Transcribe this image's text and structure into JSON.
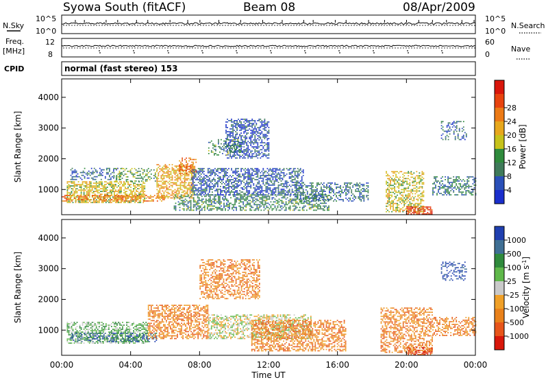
{
  "header": {
    "station": "Syowa South (fitACF)",
    "beam": "Beam 08",
    "date": "08/Apr/2009"
  },
  "summary": {
    "nsky_label": "N.Sky",
    "nsky_ticks": [
      "10^5",
      "10^0"
    ],
    "nsearch_label": "N.Search",
    "nsearch_ticks": [
      "10^5",
      "10^0"
    ],
    "freq_label_1": "Freq.",
    "freq_label_2": "[MHz]",
    "freq_ticks": [
      "12",
      "8"
    ],
    "nave_label": "Nave",
    "nave_ticks": [
      "60",
      "0"
    ],
    "cpid_label": "CPID",
    "cpid_value": "normal (fast stereo) 153"
  },
  "colors": {
    "power": [
      "#1a2ecc",
      "#2a50b8",
      "#3f7a5a",
      "#2f8b3c",
      "#c6c21a",
      "#e7a71c",
      "#ec7a15",
      "#e8430e",
      "#d9160b"
    ],
    "velocity": [
      "#1f3fb0",
      "#3f6f94",
      "#2f8a3c",
      "#5fb84a",
      "#c9c9c9",
      "#f0a028",
      "#e9811a",
      "#e7551a",
      "#d8170a"
    ]
  },
  "chart_data": [
    {
      "type": "heatmap",
      "title": "Power",
      "xlabel": "",
      "ylabel": "Slant Range [km]",
      "x_range_hours": [
        0,
        24
      ],
      "ylim": [
        180,
        4600
      ],
      "yticks": [
        "1000",
        "2000",
        "3000",
        "4000"
      ],
      "xticks": [
        "00:00",
        "04:00",
        "08:00",
        "12:00",
        "16:00",
        "20:00",
        "00:00"
      ],
      "colorbar": {
        "label": "Power [dB]",
        "min": 0,
        "max": 32,
        "ticks": [
          "4",
          "8",
          "12",
          "16",
          "20",
          "24",
          "28"
        ]
      },
      "regions": [
        {
          "t": [
            0.3,
            4.8
          ],
          "r": [
            550,
            1250
          ],
          "v": 17,
          "density": 0.6
        },
        {
          "t": [
            0.5,
            3.5
          ],
          "r": [
            1300,
            1700
          ],
          "v": 7,
          "density": 0.35
        },
        {
          "t": [
            3.0,
            5.5
          ],
          "r": [
            1250,
            1700
          ],
          "v": 12,
          "density": 0.35
        },
        {
          "t": [
            0.0,
            6.0
          ],
          "r": [
            600,
            800
          ],
          "v": 23,
          "density": 0.55
        },
        {
          "t": [
            5.5,
            7.6
          ],
          "r": [
            700,
            1800
          ],
          "v": 20,
          "density": 0.6
        },
        {
          "t": [
            6.8,
            7.8
          ],
          "r": [
            1500,
            2000
          ],
          "v": 24,
          "density": 0.55
        },
        {
          "t": [
            6.5,
            15.5
          ],
          "r": [
            300,
            800
          ],
          "v": 10,
          "density": 0.5
        },
        {
          "t": [
            7.5,
            14.0
          ],
          "r": [
            800,
            1700
          ],
          "v": 6,
          "density": 0.55
        },
        {
          "t": [
            9.5,
            12.0
          ],
          "r": [
            2000,
            3300
          ],
          "v": 5,
          "density": 0.55
        },
        {
          "t": [
            8.5,
            10.5
          ],
          "r": [
            2100,
            2600
          ],
          "v": 10,
          "density": 0.35
        },
        {
          "t": [
            13.5,
            17.8
          ],
          "r": [
            600,
            1200
          ],
          "v": 8,
          "density": 0.45
        },
        {
          "t": [
            18.8,
            21.0
          ],
          "r": [
            250,
            1600
          ],
          "v": 17,
          "density": 0.5
        },
        {
          "t": [
            20.0,
            21.5
          ],
          "r": [
            180,
            450
          ],
          "v": 27,
          "density": 0.7
        },
        {
          "t": [
            21.5,
            24.0
          ],
          "r": [
            800,
            1400
          ],
          "v": 9,
          "density": 0.5
        },
        {
          "t": [
            22.0,
            23.5
          ],
          "r": [
            2600,
            3200
          ],
          "v": 6,
          "density": 0.3
        }
      ]
    },
    {
      "type": "heatmap",
      "title": "Velocity",
      "xlabel": "Time UT",
      "ylabel": "Slant Range [km]",
      "x_range_hours": [
        0,
        24
      ],
      "ylim": [
        180,
        4600
      ],
      "yticks": [
        "1000",
        "2000",
        "3000",
        "4000"
      ],
      "xticks": [
        "00:00",
        "04:00",
        "08:00",
        "12:00",
        "16:00",
        "20:00",
        "00:00"
      ],
      "colorbar": {
        "label": "Velocity [m s^-1]",
        "ticks": [
          "1000",
          "500",
          "100",
          "25",
          "-25",
          "-100",
          "-500",
          "-1000"
        ]
      },
      "regions": [
        {
          "t": [
            0.3,
            5.0
          ],
          "r": [
            550,
            1250
          ],
          "v": 3,
          "density": 0.55
        },
        {
          "t": [
            0.5,
            5.5
          ],
          "r": [
            600,
            900
          ],
          "v": 1,
          "density": 0.5
        },
        {
          "t": [
            5.0,
            8.5
          ],
          "r": [
            700,
            1800
          ],
          "v": 6,
          "density": 0.55
        },
        {
          "t": [
            8.0,
            11.5
          ],
          "r": [
            2000,
            3300
          ],
          "v": 6,
          "density": 0.5
        },
        {
          "t": [
            8.5,
            14.5
          ],
          "r": [
            700,
            1500
          ],
          "v": 4,
          "density": 0.55
        },
        {
          "t": [
            11.0,
            16.5
          ],
          "r": [
            300,
            1300
          ],
          "v": 6,
          "density": 0.55
        },
        {
          "t": [
            18.5,
            21.5
          ],
          "r": [
            250,
            1700
          ],
          "v": 6,
          "density": 0.5
        },
        {
          "t": [
            20.0,
            21.5
          ],
          "r": [
            180,
            450
          ],
          "v": 7,
          "density": 0.6
        },
        {
          "t": [
            21.5,
            24.0
          ],
          "r": [
            800,
            1400
          ],
          "v": 6,
          "density": 0.45
        },
        {
          "t": [
            22.0,
            23.5
          ],
          "r": [
            2600,
            3200
          ],
          "v": 0,
          "density": 0.3
        }
      ]
    }
  ]
}
